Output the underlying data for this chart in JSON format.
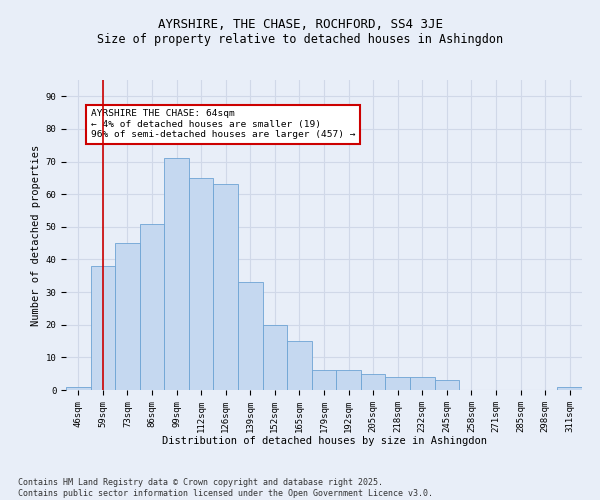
{
  "title": "AYRSHIRE, THE CHASE, ROCHFORD, SS4 3JE",
  "subtitle": "Size of property relative to detached houses in Ashingdon",
  "xlabel": "Distribution of detached houses by size in Ashingdon",
  "ylabel": "Number of detached properties",
  "categories": [
    "46sqm",
    "59sqm",
    "73sqm",
    "86sqm",
    "99sqm",
    "112sqm",
    "126sqm",
    "139sqm",
    "152sqm",
    "165sqm",
    "179sqm",
    "192sqm",
    "205sqm",
    "218sqm",
    "232sqm",
    "245sqm",
    "258sqm",
    "271sqm",
    "285sqm",
    "298sqm",
    "311sqm"
  ],
  "values": [
    1,
    38,
    45,
    51,
    71,
    65,
    63,
    33,
    20,
    15,
    6,
    6,
    5,
    4,
    4,
    3,
    0,
    0,
    0,
    0,
    1
  ],
  "bar_color": "#c5d8f0",
  "bar_edge_color": "#6da3d4",
  "grid_color": "#d0d8e8",
  "background_color": "#e8eef8",
  "annotation_box_color": "#ffffff",
  "annotation_border_color": "#cc0000",
  "annotation_text": "AYRSHIRE THE CHASE: 64sqm\n← 4% of detached houses are smaller (19)\n96% of semi-detached houses are larger (457) →",
  "vline_x": 1,
  "vline_color": "#cc0000",
  "ylim": [
    0,
    95
  ],
  "yticks": [
    0,
    10,
    20,
    30,
    40,
    50,
    60,
    70,
    80,
    90
  ],
  "footer1": "Contains HM Land Registry data © Crown copyright and database right 2025.",
  "footer2": "Contains public sector information licensed under the Open Government Licence v3.0.",
  "title_fontsize": 9,
  "subtitle_fontsize": 8.5,
  "label_fontsize": 7.5,
  "tick_fontsize": 6.5,
  "annotation_fontsize": 6.8,
  "footer_fontsize": 6
}
